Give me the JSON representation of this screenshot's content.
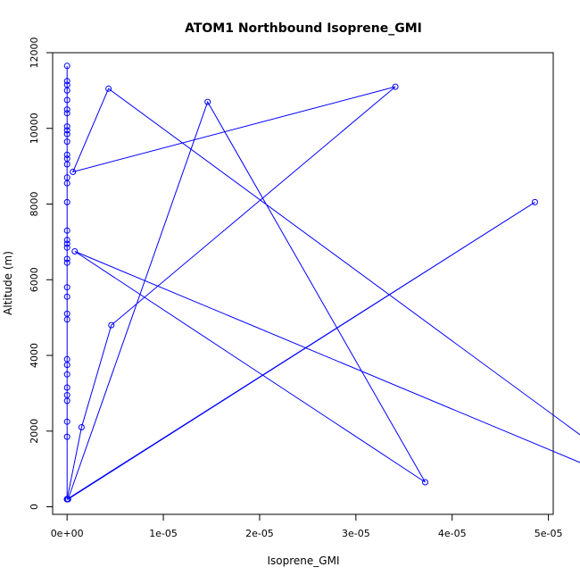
{
  "colors": {
    "series": "#0000ff",
    "axis": "#000000",
    "background": "#ffffff"
  },
  "chart_data": {
    "type": "line",
    "title": "ATOM1 Northbound Isoprene_GMI",
    "xlabel": "Isoprene_GMI",
    "ylabel": "Altitude (m)",
    "xlim": [
      -1.5e-06,
      5.05e-05
    ],
    "ylim": [
      -200,
      12000
    ],
    "grid": false,
    "legend": "none",
    "markers": "open circles",
    "x_ticks": [
      0,
      1e-05,
      2e-05,
      3e-05,
      4e-05,
      5e-05
    ],
    "x_tick_labels": [
      "0e+00",
      "1e-05",
      "2e-05",
      "3e-05",
      "4e-05",
      "5e-05"
    ],
    "y_ticks": [
      0,
      2000,
      4000,
      6000,
      8000,
      10000,
      12000
    ],
    "y_tick_labels": [
      "0",
      "2000",
      "4000",
      "6000",
      "8000",
      "10000",
      "12000"
    ],
    "series": [
      {
        "x": [
          0,
          0,
          0,
          0,
          0,
          0,
          0,
          0,
          0,
          0,
          0,
          0,
          0,
          0,
          0,
          0,
          0,
          0,
          0,
          0,
          0,
          0,
          0,
          0,
          0,
          0,
          0,
          0,
          0,
          0,
          0,
          0,
          0,
          0,
          0,
          0,
          1.5e-06,
          4.6e-06,
          3.41e-05,
          6e-07,
          4.3e-06,
          6.24e-05,
          8e-07,
          3.72e-05,
          1.46e-05,
          1e-07,
          4.86e-05,
          0,
          0,
          0,
          0
        ],
        "y": [
          11650,
          11250,
          11150,
          11000,
          10750,
          10500,
          10400,
          10050,
          9950,
          9850,
          9650,
          9300,
          9200,
          9050,
          8700,
          8550,
          8050,
          7300,
          7050,
          6950,
          6850,
          6550,
          6450,
          5800,
          5550,
          5100,
          4950,
          3900,
          3750,
          3500,
          3150,
          2950,
          2800,
          2250,
          1850,
          200,
          2100,
          4800,
          11100,
          8850,
          11050,
          200,
          6750,
          650,
          10700,
          200,
          8050,
          200,
          200,
          200,
          200
        ]
      }
    ]
  }
}
